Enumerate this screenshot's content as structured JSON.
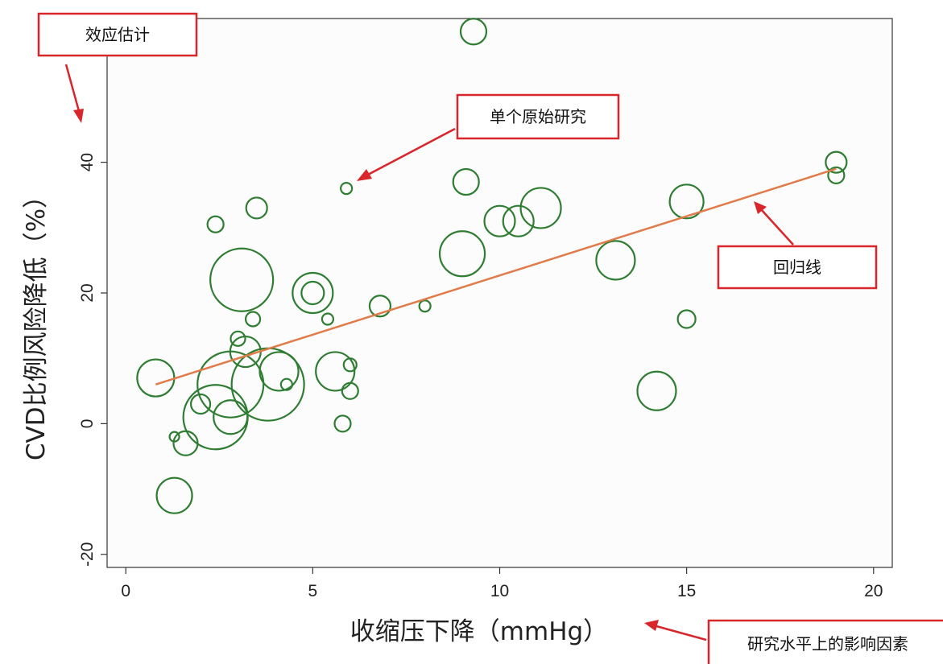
{
  "colors": {
    "bubble_stroke": "#2f7d32",
    "regression_line": "#e07b4a",
    "callout": "#d8262b",
    "plot_background": "#fcfcfc"
  },
  "callouts": {
    "effect_estimate": "效应估计",
    "single_study": "单个原始研究",
    "regression_line": "回归线",
    "study_level_factor": "研究水平上的影响因素"
  },
  "chart_data": {
    "type": "scatter",
    "subtype": "bubble",
    "xlabel": "收缩压下降（mmHg）",
    "ylabel": "CVD比例风险降低（%）",
    "xlim": [
      -0.5,
      20.5
    ],
    "ylim": [
      -22,
      62
    ],
    "xticks": [
      0,
      5,
      10,
      15,
      20
    ],
    "yticks": [
      -20,
      0,
      20,
      40
    ],
    "grid": false,
    "legend": "none",
    "points": [
      {
        "x": 9.3,
        "y": 60,
        "size": 16
      },
      {
        "x": 5.9,
        "y": 36,
        "size": 7
      },
      {
        "x": 9.1,
        "y": 37,
        "size": 16
      },
      {
        "x": 19,
        "y": 40,
        "size": 13
      },
      {
        "x": 19,
        "y": 38,
        "size": 10
      },
      {
        "x": 2.4,
        "y": 30.5,
        "size": 10
      },
      {
        "x": 3.5,
        "y": 33,
        "size": 13
      },
      {
        "x": 15,
        "y": 34,
        "size": 21
      },
      {
        "x": 11.1,
        "y": 33,
        "size": 25
      },
      {
        "x": 10,
        "y": 31,
        "size": 19
      },
      {
        "x": 10.5,
        "y": 31,
        "size": 19
      },
      {
        "x": 9,
        "y": 26,
        "size": 28
      },
      {
        "x": 13.1,
        "y": 25,
        "size": 24
      },
      {
        "x": 3.1,
        "y": 22,
        "size": 39
      },
      {
        "x": 5,
        "y": 20,
        "size": 25
      },
      {
        "x": 5,
        "y": 20,
        "size": 14
      },
      {
        "x": 6.8,
        "y": 18,
        "size": 13
      },
      {
        "x": 8,
        "y": 18,
        "size": 7
      },
      {
        "x": 3.4,
        "y": 16,
        "size": 9
      },
      {
        "x": 5.4,
        "y": 16,
        "size": 7
      },
      {
        "x": 15,
        "y": 16,
        "size": 11
      },
      {
        "x": 3,
        "y": 13,
        "size": 9
      },
      {
        "x": 3.2,
        "y": 11,
        "size": 19
      },
      {
        "x": 0.8,
        "y": 7,
        "size": 23
      },
      {
        "x": 3.8,
        "y": 6,
        "size": 45
      },
      {
        "x": 2.8,
        "y": 6,
        "size": 41
      },
      {
        "x": 4.1,
        "y": 8,
        "size": 24
      },
      {
        "x": 5.6,
        "y": 8,
        "size": 24
      },
      {
        "x": 6,
        "y": 9,
        "size": 8
      },
      {
        "x": 4.3,
        "y": 6,
        "size": 7
      },
      {
        "x": 6,
        "y": 5,
        "size": 10
      },
      {
        "x": 14.2,
        "y": 5,
        "size": 24
      },
      {
        "x": 2,
        "y": 3,
        "size": 12
      },
      {
        "x": 2.4,
        "y": 1,
        "size": 40
      },
      {
        "x": 2.8,
        "y": 1,
        "size": 21
      },
      {
        "x": 5.8,
        "y": 0,
        "size": 10
      },
      {
        "x": 1.3,
        "y": -2,
        "size": 6
      },
      {
        "x": 1.6,
        "y": -3,
        "size": 15
      },
      {
        "x": 1.3,
        "y": -11,
        "size": 22
      }
    ],
    "regression": {
      "x": [
        0.8,
        19
      ],
      "y": [
        6,
        39
      ]
    }
  }
}
